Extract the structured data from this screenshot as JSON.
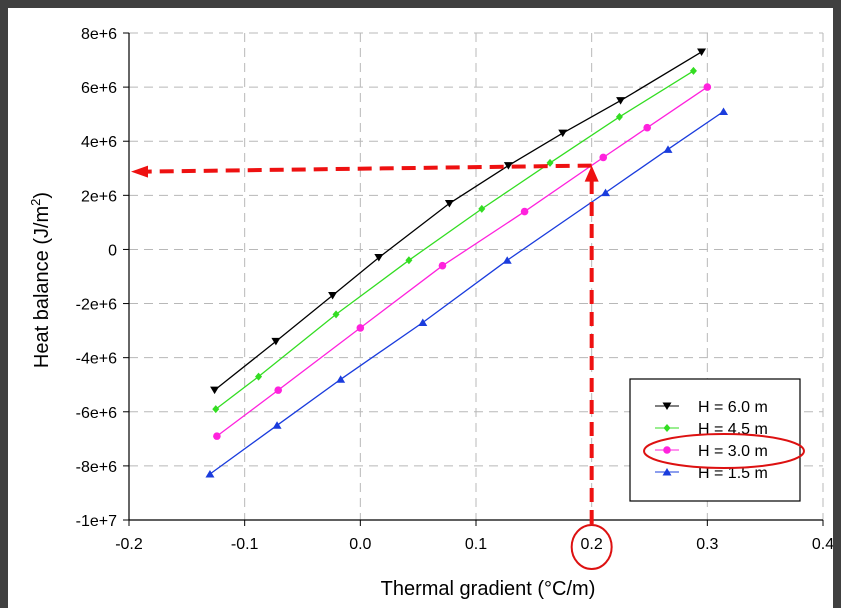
{
  "chart_data": {
    "type": "line",
    "xlabel": "Thermal gradient (°C/m)",
    "ylabel": "Heat balance (J/m²)",
    "ylabel_main": "Heat balance (J/m",
    "ylabel_sup": "2",
    "ylabel_close": ")",
    "xlim": [
      -0.2,
      0.4
    ],
    "ylim": [
      -10000000,
      8000000
    ],
    "xticks": [
      -0.2,
      -0.1,
      0.0,
      0.1,
      0.2,
      0.3,
      0.4
    ],
    "xtick_labels": [
      "-0.2",
      "-0.1",
      "0.0",
      "0.1",
      "0.2",
      "0.3",
      "0.4"
    ],
    "yticks": [
      -10000000,
      -8000000,
      -6000000,
      -4000000,
      -2000000,
      0,
      2000000,
      4000000,
      6000000,
      8000000
    ],
    "ytick_labels": [
      "-1e+7",
      "-8e+6",
      "-6e+6",
      "-4e+6",
      "-2e+6",
      "0",
      "2e+6",
      "4e+6",
      "6e+6",
      "8e+6"
    ],
    "grid": "dashed",
    "legend_position": "bottom-right",
    "series": [
      {
        "name": "H = 6.0 m",
        "color": "#000000",
        "marker": "triangle-down",
        "x": [
          -0.126,
          -0.073,
          -0.024,
          0.016,
          0.077,
          0.128,
          0.175,
          0.225,
          0.295
        ],
        "y": [
          -5200000,
          -3400000,
          -1700000,
          -300000,
          1700000,
          3100000,
          4300000,
          5500000,
          7300000
        ]
      },
      {
        "name": "H = 4.5 m",
        "color": "#33dd22",
        "marker": "diamond",
        "x": [
          -0.125,
          -0.088,
          -0.021,
          0.042,
          0.105,
          0.164,
          0.224,
          0.288
        ],
        "y": [
          -5900000,
          -4700000,
          -2400000,
          -400000,
          1500000,
          3200000,
          4900000,
          6600000
        ]
      },
      {
        "name": "H = 3.0 m",
        "color": "#ff22dd",
        "marker": "circle",
        "x": [
          -0.124,
          -0.071,
          0.0,
          0.071,
          0.142,
          0.21,
          0.248,
          0.3
        ],
        "y": [
          -6900000,
          -5200000,
          -2900000,
          -600000,
          1400000,
          3400000,
          4500000,
          6000000
        ]
      },
      {
        "name": "H = 1.5 m",
        "color": "#1a3cdd",
        "marker": "triangle-up",
        "x": [
          -0.13,
          -0.072,
          -0.017,
          0.054,
          0.127,
          0.212,
          0.266,
          0.314
        ],
        "y": [
          -8300000,
          -6500000,
          -4800000,
          -2700000,
          -400000,
          2100000,
          3700000,
          5100000
        ]
      }
    ],
    "annotations": {
      "reference_x": 0.2,
      "reference_y": 3100000,
      "arrow_color": "#ee1111",
      "highlight_color": "#dd1111"
    }
  }
}
